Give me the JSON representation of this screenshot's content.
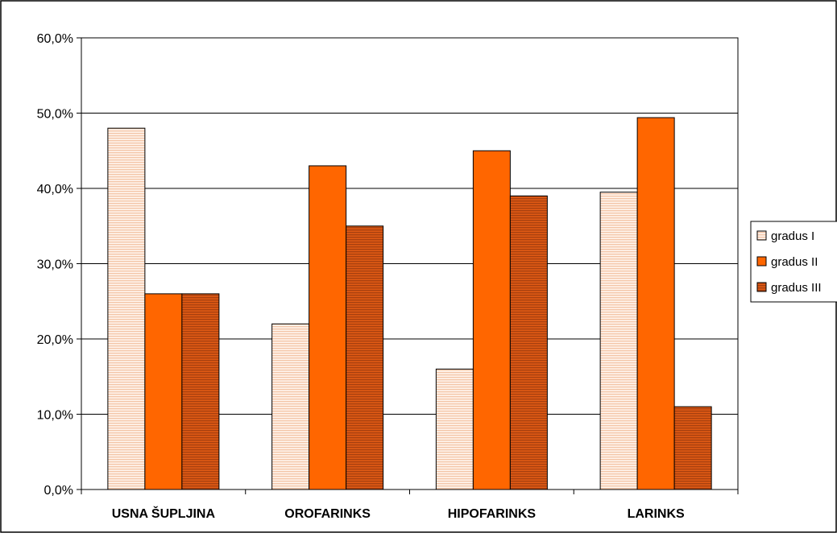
{
  "chart_data": {
    "type": "bar",
    "title": "",
    "xlabel": "",
    "ylabel": "",
    "categories": [
      "USNA ŠUPLJINA",
      "OROFARINKS",
      "HIPOFARINKS",
      "LARINKS"
    ],
    "series": [
      {
        "name": "gradus I",
        "values": [
          48.0,
          22.0,
          16.0,
          39.5
        ],
        "color": "#FBE5D6",
        "pattern": "light-horizontal-stripes"
      },
      {
        "name": "gradus II",
        "values": [
          26.0,
          43.0,
          45.0,
          49.4
        ],
        "color": "#FF6600",
        "pattern": "solid"
      },
      {
        "name": "gradus III",
        "values": [
          26.0,
          35.0,
          39.0,
          11.0
        ],
        "color": "#C0501A",
        "pattern": "dark-horizontal-stripes"
      }
    ],
    "ylim": [
      0,
      60
    ],
    "yticks": [
      "0,0%",
      "10,0%",
      "20,0%",
      "30,0%",
      "40,0%",
      "50,0%",
      "60,0%"
    ],
    "ytick_values": [
      0,
      10,
      20,
      30,
      40,
      50,
      60
    ],
    "grid": true,
    "legend_position": "right"
  }
}
